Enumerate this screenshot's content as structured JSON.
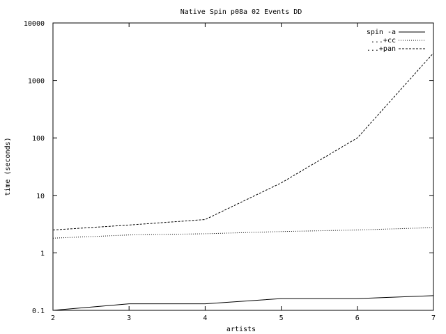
{
  "chart_data": {
    "type": "line",
    "title": "Native Spin p08a 02 Events DD",
    "xlabel": "artists",
    "ylabel": "time (seconds)",
    "x": [
      2,
      3,
      4,
      5,
      6,
      7
    ],
    "xlim": [
      2,
      7
    ],
    "ylim": [
      0.1,
      10000
    ],
    "yscale": "log",
    "xticks": [
      2,
      3,
      4,
      5,
      6,
      7
    ],
    "xtick_labels": [
      "2",
      "3",
      "4",
      "5",
      "6",
      "7"
    ],
    "yticks": [
      0.1,
      1,
      10,
      100,
      1000,
      10000
    ],
    "ytick_labels": [
      "0.1",
      "1",
      "10",
      "100",
      "1000",
      "10000"
    ],
    "grid": false,
    "legend_position": "top-right",
    "series": [
      {
        "name": "spin -a",
        "style": "solid",
        "values": [
          0.1,
          0.13,
          0.13,
          0.16,
          0.16,
          0.18
        ]
      },
      {
        "name": "...+cc",
        "style": "dotted",
        "values": [
          1.8,
          2.05,
          2.15,
          2.35,
          2.5,
          2.75
        ]
      },
      {
        "name": "...+pan",
        "style": "dashed",
        "values": [
          2.5,
          3.05,
          3.8,
          16.5,
          100,
          3000
        ]
      }
    ]
  }
}
